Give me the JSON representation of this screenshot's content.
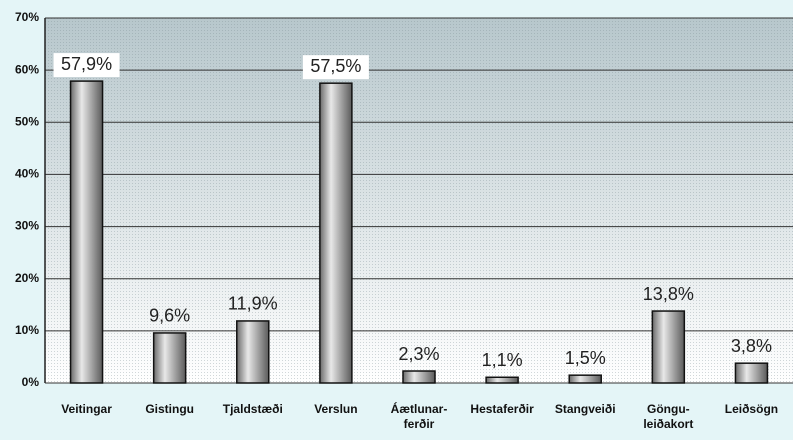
{
  "chart_data": {
    "type": "bar",
    "categories": [
      "Veitingar",
      "Gistingu",
      "Tjaldstæði",
      "Verslun",
      "Áætlunar-\nferðir",
      "Hestaferðir",
      "Stangveiði",
      "Göngu-\nleiðakort",
      "Leiðsögn"
    ],
    "values": [
      57.9,
      9.6,
      11.9,
      57.5,
      2.3,
      1.1,
      1.5,
      13.8,
      3.8
    ],
    "value_labels": [
      "57,9%",
      "9,6%",
      "11,9%",
      "57,5%",
      "2,3%",
      "1,1%",
      "1,5%",
      "13,8%",
      "3,8%"
    ],
    "color": "#a8a8a8",
    "ylim": [
      0,
      70
    ],
    "yticks": [
      {
        "value": 0,
        "label": "0%"
      },
      {
        "value": 10,
        "label": "10%"
      },
      {
        "value": 20,
        "label": "20%"
      },
      {
        "value": 30,
        "label": "30%"
      },
      {
        "value": 40,
        "label": "40%"
      },
      {
        "value": 50,
        "label": "50%"
      },
      {
        "value": 60,
        "label": "60%"
      },
      {
        "value": 70,
        "label": "70%"
      }
    ],
    "grid": true
  }
}
